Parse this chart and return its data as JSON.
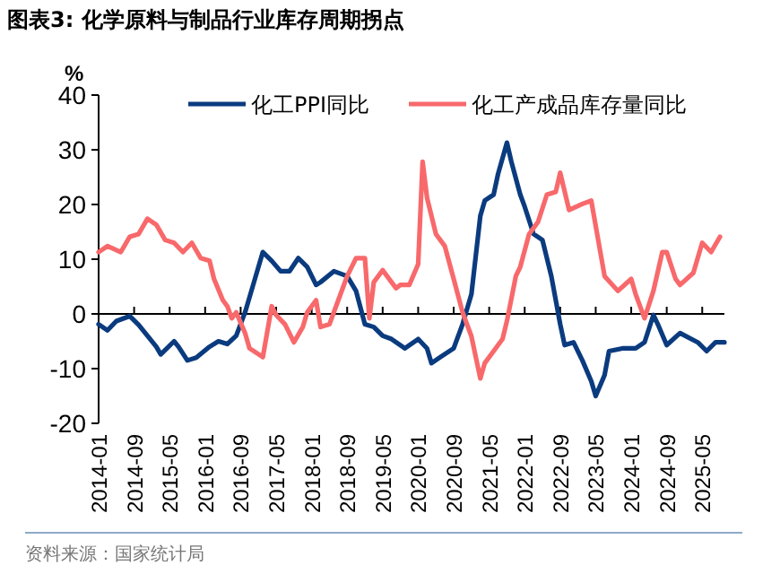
{
  "chart_data": {
    "type": "line",
    "title": "图表3:  化学原料与制品行业库存周期拐点",
    "ylabel": "%",
    "legend": "top",
    "marker": "none",
    "line_style": "solid",
    "xlim": [
      "2014-01",
      "2025-10"
    ],
    "ylim": [
      -20,
      40
    ],
    "yticks": [
      -20,
      -10,
      0,
      10,
      20,
      30,
      40
    ],
    "xticks": [
      "2014-01",
      "2014-09",
      "2015-05",
      "2016-01",
      "2016-09",
      "2017-05",
      "2018-01",
      "2018-09",
      "2019-05",
      "2020-01",
      "2020-09",
      "2021-05",
      "2022-01",
      "2022-09",
      "2023-05",
      "2024-01",
      "2024-09",
      "2025-05"
    ],
    "annotations": [
      "资料来源：国家统计局"
    ],
    "series": [
      {
        "name": "化工PPI同比",
        "color": "#0b3b7f",
        "x": [
          "2014-01",
          "2014-03",
          "2014-05",
          "2014-08",
          "2014-10",
          "2015-02",
          "2015-03",
          "2015-06",
          "2015-07",
          "2015-09",
          "2015-11",
          "2016-02",
          "2016-04",
          "2016-06",
          "2016-08",
          "2016-10",
          "2016-12",
          "2017-02",
          "2017-04",
          "2017-06",
          "2017-08",
          "2017-10",
          "2017-12",
          "2018-02",
          "2018-03",
          "2018-06",
          "2018-09",
          "2018-11",
          "2019-01",
          "2019-03",
          "2019-05",
          "2019-07",
          "2019-10",
          "2020-01",
          "2020-03",
          "2020-04",
          "2020-06",
          "2020-09",
          "2020-11",
          "2021-01",
          "2021-03",
          "2021-04",
          "2021-06",
          "2021-07",
          "2021-09",
          "2021-10",
          "2021-12",
          "2022-01",
          "2022-03",
          "2022-05",
          "2022-07",
          "2022-09",
          "2022-10",
          "2022-12",
          "2023-02",
          "2023-04",
          "2023-05",
          "2023-07",
          "2023-08",
          "2023-11",
          "2024-02",
          "2024-04",
          "2024-06",
          "2024-07",
          "2024-09",
          "2024-12",
          "2025-04",
          "2025-06",
          "2025-08",
          "2025-10"
        ],
        "values": [
          -1.9,
          -3,
          -1.3,
          -0.4,
          -2,
          -6,
          -7.4,
          -5,
          -6,
          -8.5,
          -8,
          -6,
          -5,
          -5.5,
          -4,
          0.3,
          5.8,
          11.3,
          9.7,
          7.8,
          7.8,
          10.2,
          8.6,
          5.3,
          5.8,
          7.8,
          6.9,
          4.2,
          -1.9,
          -2.4,
          -4,
          -4.6,
          -6.3,
          -4.6,
          -6.3,
          -9,
          -7.9,
          -6.3,
          -1.9,
          3.6,
          17.9,
          20.7,
          21.8,
          25.6,
          31.3,
          27.8,
          21.8,
          19.6,
          14.6,
          13.5,
          6.9,
          -1.9,
          -5.7,
          -5.2,
          -8.5,
          -12.3,
          -15,
          -11.2,
          -6.8,
          -6.3,
          -6.3,
          -5.2,
          -0.2,
          -1.9,
          -5.7,
          -3.5,
          -5.2,
          -6.8,
          -5.2,
          -5.2
        ]
      },
      {
        "name": "化工产成品库存量同比",
        "color": "#f8696b",
        "x": [
          "2014-01",
          "2014-03",
          "2014-06",
          "2014-08",
          "2014-10",
          "2014-12",
          "2015-02",
          "2015-04",
          "2015-06",
          "2015-08",
          "2015-10",
          "2015-12",
          "2016-02",
          "2016-03",
          "2016-05",
          "2016-06",
          "2016-07",
          "2016-08",
          "2016-10",
          "2016-11",
          "2017-02",
          "2017-04",
          "2017-05",
          "2017-07",
          "2017-09",
          "2017-11",
          "2017-12",
          "2018-02",
          "2018-03",
          "2018-05",
          "2018-07",
          "2018-09",
          "2018-11",
          "2019-01",
          "2019-02",
          "2019-03",
          "2019-05",
          "2019-07",
          "2019-08",
          "2019-09",
          "2019-11",
          "2020-01",
          "2020-02",
          "2020-03",
          "2020-05",
          "2020-07",
          "2020-09",
          "2020-11",
          "2021-01",
          "2021-03",
          "2021-04",
          "2021-06",
          "2021-08",
          "2021-09",
          "2021-11",
          "2021-12",
          "2022-02",
          "2022-04",
          "2022-06",
          "2022-08",
          "2022-09",
          "2022-11",
          "2023-02",
          "2023-04",
          "2023-07",
          "2023-10",
          "2024-01",
          "2024-02",
          "2024-04",
          "2024-06",
          "2024-08",
          "2024-09",
          "2024-11",
          "2024-12",
          "2025-03",
          "2025-05",
          "2025-07",
          "2025-09"
        ],
        "values": [
          11.3,
          12.4,
          11.3,
          14.1,
          14.6,
          17.4,
          16.3,
          13.5,
          13,
          11.3,
          13,
          10.2,
          9.7,
          6.4,
          2.5,
          1.4,
          -0.8,
          0.3,
          -3.5,
          -6.3,
          -7.9,
          1.4,
          -0.2,
          -1.9,
          -5.2,
          -2.4,
          0.3,
          2.5,
          -2.4,
          -1.9,
          2.5,
          6.9,
          10.2,
          10.2,
          -0.8,
          5.8,
          8,
          5.8,
          4.7,
          5.3,
          5.3,
          9.1,
          27.8,
          21.2,
          14.6,
          12.4,
          6.4,
          0.3,
          -4.1,
          -11.8,
          -9,
          -6.8,
          -4.6,
          -1.3,
          6.9,
          8.6,
          14.6,
          16.8,
          21.8,
          22.3,
          25.8,
          19,
          20.1,
          20.7,
          6.9,
          4.2,
          6.4,
          3.6,
          -0.8,
          4.2,
          11.3,
          11.3,
          6.4,
          5.3,
          7.5,
          13,
          11.3,
          14.1
        ]
      }
    ]
  }
}
